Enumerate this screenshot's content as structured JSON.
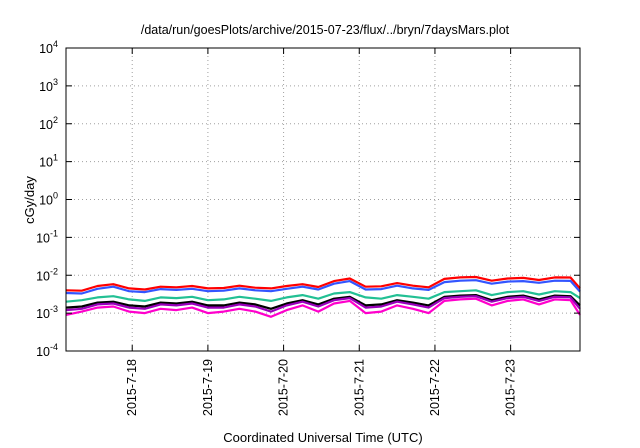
{
  "chart_data": {
    "type": "line",
    "title": "/data/run/goesPlots/archive/2015-07-23/flux/../bryn/7daysMars.plot",
    "xlabel": "Coordinated Universal Time (UTC)",
    "ylabel": "cGy/day",
    "yscale": "log",
    "ylim": [
      0.0001,
      10000
    ],
    "y_ticks": [
      {
        "base": "10",
        "exp": "-4",
        "value": 0.0001
      },
      {
        "base": "10",
        "exp": "-3",
        "value": 0.001
      },
      {
        "base": "10",
        "exp": "-2",
        "value": 0.01
      },
      {
        "base": "10",
        "exp": "-1",
        "value": 0.1
      },
      {
        "base": "10",
        "exp": "0",
        "value": 1
      },
      {
        "base": "10",
        "exp": "1",
        "value": 10
      },
      {
        "base": "10",
        "exp": "2",
        "value": 100
      },
      {
        "base": "10",
        "exp": "3",
        "value": 1000
      },
      {
        "base": "10",
        "exp": "4",
        "value": 10000
      }
    ],
    "xlim": [
      "2015-07-17T03:00",
      "2015-07-23T22:00"
    ],
    "x_ticks": [
      "2015-7-18",
      "2015-7-19",
      "2015-7-20",
      "2015-7-21",
      "2015-7-22",
      "2015-7-23"
    ],
    "x": [
      "2015-07-17T03:00",
      "2015-07-17T08:00",
      "2015-07-17T13:00",
      "2015-07-17T18:00",
      "2015-07-17T23:00",
      "2015-07-18T04:00",
      "2015-07-18T09:00",
      "2015-07-18T14:00",
      "2015-07-18T19:00",
      "2015-07-19T00:00",
      "2015-07-19T05:00",
      "2015-07-19T10:00",
      "2015-07-19T15:00",
      "2015-07-19T20:00",
      "2015-07-20T01:00",
      "2015-07-20T06:00",
      "2015-07-20T11:00",
      "2015-07-20T16:00",
      "2015-07-20T21:00",
      "2015-07-21T02:00",
      "2015-07-21T07:00",
      "2015-07-21T12:00",
      "2015-07-21T17:00",
      "2015-07-21T22:00",
      "2015-07-22T03:00",
      "2015-07-22T08:00",
      "2015-07-22T13:00",
      "2015-07-22T18:00",
      "2015-07-22T23:00",
      "2015-07-23T04:00",
      "2015-07-23T09:00",
      "2015-07-23T14:00",
      "2015-07-23T19:00",
      "2015-07-23T22:00"
    ],
    "grid": true,
    "legend": "none",
    "series": [
      {
        "color": "#ff0000",
        "values": [
          0.004,
          0.0039,
          0.0052,
          0.0058,
          0.0045,
          0.0042,
          0.005,
          0.0048,
          0.0052,
          0.0045,
          0.0046,
          0.0053,
          0.0047,
          0.0045,
          0.0052,
          0.0058,
          0.0049,
          0.007,
          0.0082,
          0.005,
          0.0051,
          0.0062,
          0.0053,
          0.0048,
          0.008,
          0.0088,
          0.009,
          0.0072,
          0.0082,
          0.0085,
          0.0075,
          0.0088,
          0.0087,
          0.0045
        ]
      },
      {
        "color": "#3355ff",
        "values": [
          0.0034,
          0.0033,
          0.0044,
          0.005,
          0.0038,
          0.0036,
          0.0043,
          0.0041,
          0.0044,
          0.0038,
          0.0039,
          0.0045,
          0.004,
          0.0038,
          0.0044,
          0.005,
          0.0042,
          0.006,
          0.007,
          0.0042,
          0.0043,
          0.0053,
          0.0045,
          0.0041,
          0.0066,
          0.0072,
          0.0074,
          0.006,
          0.0068,
          0.007,
          0.0063,
          0.0072,
          0.0071,
          0.0037
        ]
      },
      {
        "color": "#22c094",
        "values": [
          0.002,
          0.0022,
          0.0026,
          0.0028,
          0.0023,
          0.0021,
          0.0026,
          0.0025,
          0.0027,
          0.0022,
          0.0023,
          0.0027,
          0.0024,
          0.0021,
          0.0026,
          0.003,
          0.0024,
          0.0033,
          0.0036,
          0.0026,
          0.0024,
          0.003,
          0.0027,
          0.0024,
          0.0036,
          0.0038,
          0.004,
          0.003,
          0.0036,
          0.0038,
          0.0031,
          0.0038,
          0.0036,
          0.0025
        ]
      },
      {
        "color": "#000000",
        "values": [
          0.0014,
          0.0015,
          0.0019,
          0.002,
          0.0016,
          0.0015,
          0.0019,
          0.0018,
          0.002,
          0.0016,
          0.0016,
          0.0019,
          0.0017,
          0.0013,
          0.0018,
          0.0022,
          0.0017,
          0.0024,
          0.0027,
          0.0016,
          0.0017,
          0.0022,
          0.0019,
          0.0016,
          0.0027,
          0.0029,
          0.003,
          0.0022,
          0.0027,
          0.0029,
          0.0023,
          0.0029,
          0.0028,
          0.0016
        ]
      },
      {
        "color": "#9900bb",
        "values": [
          0.0012,
          0.0013,
          0.0017,
          0.0018,
          0.0014,
          0.0013,
          0.0017,
          0.0016,
          0.0018,
          0.0014,
          0.0014,
          0.0017,
          0.0015,
          0.0011,
          0.0016,
          0.002,
          0.0015,
          0.0022,
          0.0025,
          0.0014,
          0.0015,
          0.002,
          0.0017,
          0.0014,
          0.0025,
          0.0027,
          0.0028,
          0.002,
          0.0025,
          0.0027,
          0.0021,
          0.0027,
          0.0026,
          0.0013
        ]
      },
      {
        "color": "#ff00cc",
        "values": [
          0.0009,
          0.0011,
          0.0014,
          0.0015,
          0.0011,
          0.001,
          0.0013,
          0.0012,
          0.0014,
          0.001,
          0.0011,
          0.0013,
          0.0011,
          0.0008,
          0.0012,
          0.0016,
          0.0011,
          0.0018,
          0.0021,
          0.001,
          0.0011,
          0.0016,
          0.0013,
          0.001,
          0.0021,
          0.0023,
          0.0024,
          0.0016,
          0.0021,
          0.0023,
          0.0017,
          0.0023,
          0.0022,
          0.0009
        ]
      }
    ]
  }
}
